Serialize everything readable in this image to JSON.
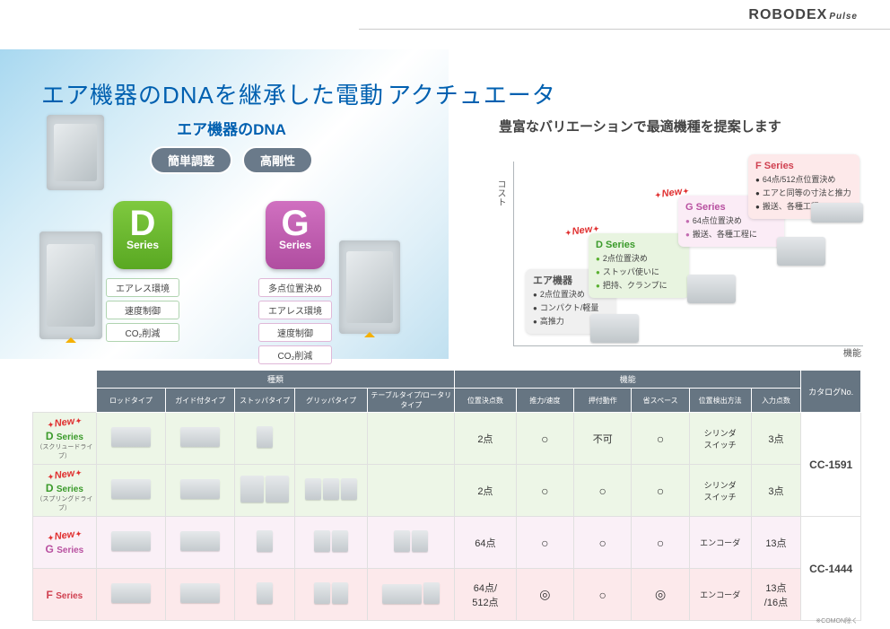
{
  "brand": {
    "name": "ROBODEX",
    "sub": "Pulse"
  },
  "headline_left": "エア機器のDNAを継承した電動",
  "headline_right": "アクチュエータ",
  "sub_headline": "豊富なバリエーションで最適機種を提案します",
  "dna": {
    "title": "エア機器のDNA",
    "pill1": "簡単調整",
    "pill2": "高剛性"
  },
  "dcard": {
    "letter": "D",
    "series": "Series"
  },
  "gcard": {
    "letter": "G",
    "series": "Series"
  },
  "dbullets": [
    "エアレス環境",
    "速度制御",
    "CO₂削減"
  ],
  "gbullets": [
    "多点位置決め",
    "エアレス環境",
    "速度制御",
    "CO₂削減"
  ],
  "chart": {
    "axis_y": "コスト",
    "axis_x": "機能",
    "new_label": "New",
    "air": {
      "title": "エア機器",
      "rows": [
        "2点位置決め",
        "コンパクト/軽量",
        "高推力"
      ]
    },
    "d": {
      "title": "D Series",
      "rows": [
        "2点位置決め",
        "ストッパ使いに",
        "把持、クランプに"
      ]
    },
    "g": {
      "title": "G Series",
      "rows": [
        "64点位置決め",
        "搬送、各種工程に"
      ]
    },
    "f": {
      "title": "F Series",
      "rows": [
        "64点/512点位置決め",
        "エアと同等の寸法と推力",
        "搬送、各種工程に"
      ]
    }
  },
  "table": {
    "group_type": "種類",
    "group_func": "機能",
    "cat_header": "カタログNo.",
    "type_cols": [
      "ロッドタイプ",
      "ガイド付タイプ",
      "ストッパタイプ",
      "グリッパタイプ",
      "テーブルタイプ/ロータリタイプ"
    ],
    "func_cols": [
      "位置決点数",
      "推力/速度",
      "押付動作",
      "省スペース",
      "位置検出方法",
      "入力点数"
    ],
    "rows": [
      {
        "key": "d1",
        "css": "row-d1",
        "label_series": "D Series",
        "label_sub": "（スクリュードライブ）",
        "label_class": "d",
        "new": true,
        "thumbs": [
          [
            "w"
          ],
          [
            "w"
          ],
          [
            "sm"
          ],
          [],
          []
        ],
        "funcs": [
          "2点",
          "○",
          "不可",
          "○",
          "シリンダ\nスイッチ",
          "3点"
        ],
        "cat": ""
      },
      {
        "key": "d2",
        "css": "row-d2",
        "label_series": "D Series",
        "label_sub": "（スプリングドライブ）",
        "label_class": "d",
        "new": true,
        "thumbs": [
          [
            "w"
          ],
          [
            "w"
          ],
          [
            "",
            ""
          ],
          [
            "sm",
            "sm",
            "sm"
          ],
          []
        ],
        "funcs": [
          "2点",
          "○",
          "○",
          "○",
          "シリンダ\nスイッチ",
          "3点"
        ],
        "cat": "CC-1591",
        "cat_rowspan": 2,
        "cat_attach": "above"
      },
      {
        "key": "g",
        "css": "row-g",
        "label_series": "G Series",
        "label_sub": "",
        "label_class": "g",
        "new": true,
        "thumbs": [
          [
            "w"
          ],
          [
            "w"
          ],
          [
            "sm"
          ],
          [
            "sm",
            "sm"
          ],
          [
            "sm",
            "sm"
          ]
        ],
        "funcs": [
          "64点",
          "○",
          "○",
          "○",
          "エンコーダ",
          "13点"
        ],
        "cat": ""
      },
      {
        "key": "f",
        "css": "row-f",
        "label_series": "F Series",
        "label_sub": "",
        "label_class": "f",
        "new": false,
        "thumbs": [
          [
            "w"
          ],
          [
            "w"
          ],
          [
            "sm"
          ],
          [
            "sm",
            "sm"
          ],
          [
            "w",
            "sm"
          ]
        ],
        "funcs": [
          "64点/\n512点",
          "◎",
          "○",
          "◎",
          "エンコーダ",
          "13点\n/16点"
        ],
        "cat": "CC-1444",
        "cat_rowspan": 2,
        "cat_attach": "above"
      }
    ]
  },
  "footnote": "※COMON除く",
  "colors": {
    "blue": "#0060b0",
    "green": "#59a822",
    "magenta": "#b850a0",
    "red": "#d04050",
    "th_bg": "#667582",
    "d_bg": "#edf6e7",
    "g_bg": "#faf0f7",
    "f_bg": "#fce9eb"
  }
}
